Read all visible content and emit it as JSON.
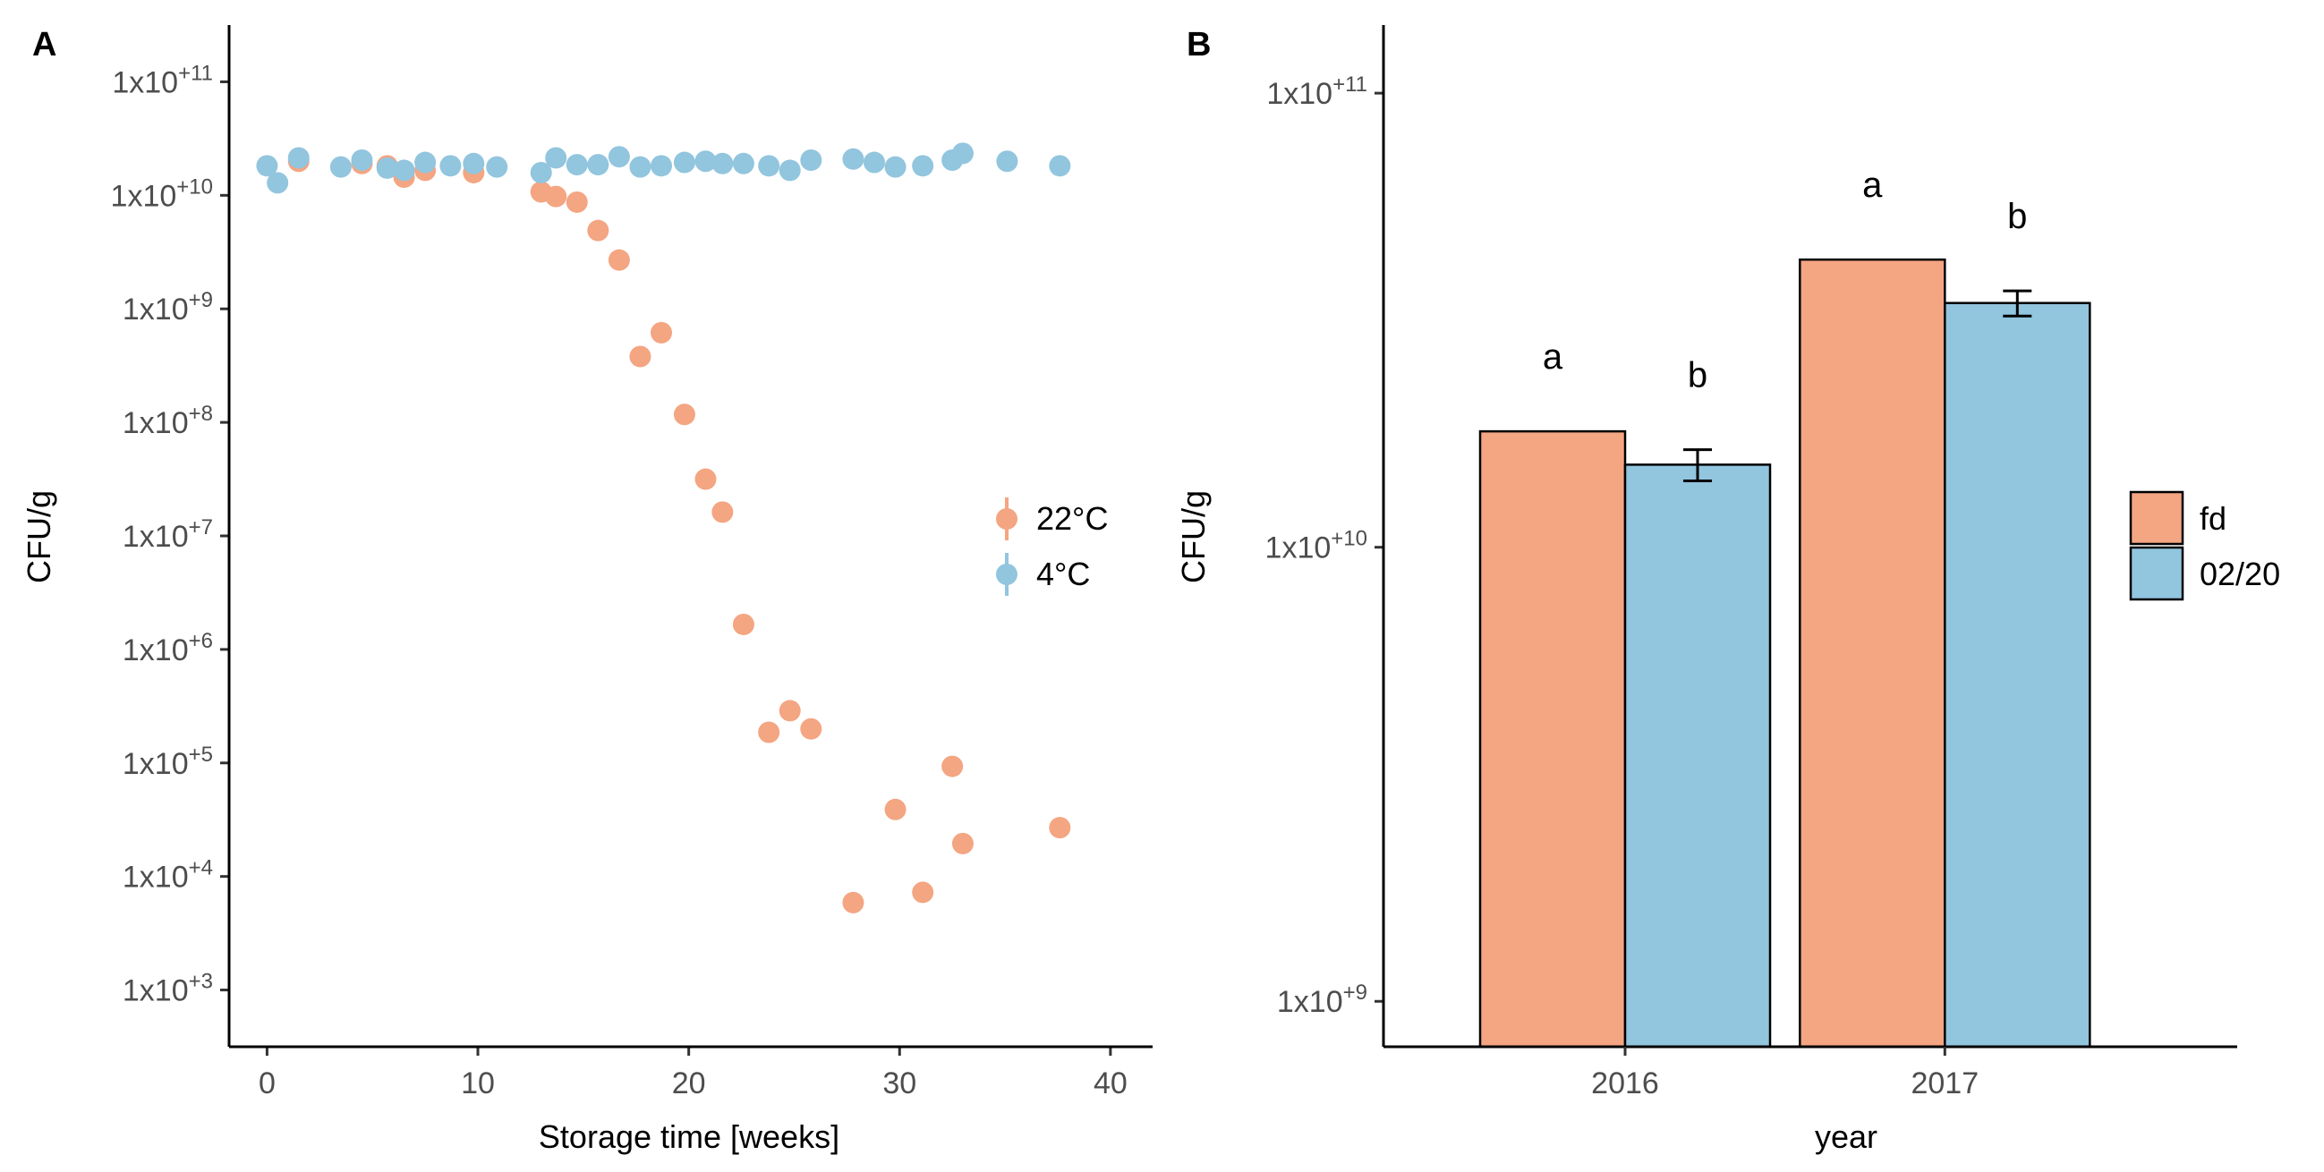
{
  "chart_data": [
    {
      "panel": "A",
      "type": "scatter",
      "title": "",
      "xlabel": "Storage time [weeks]",
      "ylabel": "CFU/g",
      "y_scale": "log10",
      "xlim": [
        -1.8,
        42
      ],
      "ylim_log10": [
        2.5,
        11.5
      ],
      "x_ticks": [
        0,
        10,
        20,
        30,
        40
      ],
      "x_tick_labels": [
        "0",
        "10",
        "20",
        "30",
        "40"
      ],
      "y_ticks_log10": [
        3,
        4,
        5,
        6,
        7,
        8,
        9,
        10,
        11
      ],
      "y_tick_labels": [
        {
          "base": "1x10",
          "exp": "+3"
        },
        {
          "base": "1x10",
          "exp": "+4"
        },
        {
          "base": "1x10",
          "exp": "+5"
        },
        {
          "base": "1x10",
          "exp": "+6"
        },
        {
          "base": "1x10",
          "exp": "+7"
        },
        {
          "base": "1x10",
          "exp": "+8"
        },
        {
          "base": "1x10",
          "exp": "+9"
        },
        {
          "base": "1x10",
          "exp": "+10"
        },
        {
          "base": "1x10",
          "exp": "+11"
        }
      ],
      "legend_position": "right",
      "series": [
        {
          "name": "22°C",
          "color": "#F4A582",
          "points": [
            {
              "x": 1.5,
              "log10y": 10.3
            },
            {
              "x": 4.5,
              "log10y": 10.28
            },
            {
              "x": 5.7,
              "log10y": 10.26
            },
            {
              "x": 6.5,
              "log10y": 10.16
            },
            {
              "x": 7.5,
              "log10y": 10.22
            },
            {
              "x": 9.8,
              "log10y": 10.2
            },
            {
              "x": 13.0,
              "log10y": 10.03
            },
            {
              "x": 13.7,
              "log10y": 9.99
            },
            {
              "x": 14.7,
              "log10y": 9.94
            },
            {
              "x": 15.7,
              "log10y": 9.69
            },
            {
              "x": 16.7,
              "log10y": 9.43
            },
            {
              "x": 17.7,
              "log10y": 8.58
            },
            {
              "x": 18.7,
              "log10y": 8.79
            },
            {
              "x": 19.8,
              "log10y": 8.07
            },
            {
              "x": 20.8,
              "log10y": 7.5
            },
            {
              "x": 21.6,
              "log10y": 7.21
            },
            {
              "x": 22.6,
              "log10y": 6.22
            },
            {
              "x": 23.8,
              "log10y": 5.27
            },
            {
              "x": 24.8,
              "log10y": 5.46
            },
            {
              "x": 25.8,
              "log10y": 5.3
            },
            {
              "x": 27.8,
              "log10y": 3.77
            },
            {
              "x": 29.8,
              "log10y": 4.59
            },
            {
              "x": 31.1,
              "log10y": 3.86
            },
            {
              "x": 32.5,
              "log10y": 4.97
            },
            {
              "x": 33.0,
              "log10y": 4.29
            },
            {
              "x": 37.6,
              "log10y": 4.43
            }
          ]
        },
        {
          "name": "4°C",
          "color": "#92C5DE",
          "points": [
            {
              "x": 0.0,
              "log10y": 10.26
            },
            {
              "x": 0.5,
              "log10y": 10.11
            },
            {
              "x": 1.5,
              "log10y": 10.33
            },
            {
              "x": 3.5,
              "log10y": 10.25
            },
            {
              "x": 4.5,
              "log10y": 10.31
            },
            {
              "x": 5.7,
              "log10y": 10.24
            },
            {
              "x": 6.5,
              "log10y": 10.22
            },
            {
              "x": 7.5,
              "log10y": 10.29
            },
            {
              "x": 8.7,
              "log10y": 10.26
            },
            {
              "x": 9.8,
              "log10y": 10.28
            },
            {
              "x": 10.9,
              "log10y": 10.25
            },
            {
              "x": 13.0,
              "log10y": 10.2
            },
            {
              "x": 13.7,
              "log10y": 10.33
            },
            {
              "x": 14.7,
              "log10y": 10.27
            },
            {
              "x": 15.7,
              "log10y": 10.27
            },
            {
              "x": 16.7,
              "log10y": 10.34
            },
            {
              "x": 17.7,
              "log10y": 10.25
            },
            {
              "x": 18.7,
              "log10y": 10.26
            },
            {
              "x": 19.8,
              "log10y": 10.29
            },
            {
              "x": 20.8,
              "log10y": 10.3
            },
            {
              "x": 21.6,
              "log10y": 10.28
            },
            {
              "x": 22.6,
              "log10y": 10.28
            },
            {
              "x": 23.8,
              "log10y": 10.26
            },
            {
              "x": 24.8,
              "log10y": 10.22
            },
            {
              "x": 25.8,
              "log10y": 10.31
            },
            {
              "x": 27.8,
              "log10y": 10.32
            },
            {
              "x": 28.8,
              "log10y": 10.29
            },
            {
              "x": 29.8,
              "log10y": 10.25
            },
            {
              "x": 31.1,
              "log10y": 10.26
            },
            {
              "x": 32.5,
              "log10y": 10.31
            },
            {
              "x": 33.0,
              "log10y": 10.37
            },
            {
              "x": 35.1,
              "log10y": 10.3
            },
            {
              "x": 37.6,
              "log10y": 10.26
            }
          ]
        }
      ]
    },
    {
      "panel": "B",
      "type": "bar",
      "title": "",
      "xlabel": "year",
      "ylabel": "CFU/g",
      "y_scale": "log10",
      "ylim_log10": [
        8.9,
        11.15
      ],
      "categories": [
        "2016",
        "2017"
      ],
      "y_ticks_log10": [
        9,
        10,
        11
      ],
      "y_tick_labels": [
        {
          "base": "1x10",
          "exp": "+9"
        },
        {
          "base": "1x10",
          "exp": "+10"
        },
        {
          "base": "1x10",
          "exp": "+11"
        }
      ],
      "legend_position": "right",
      "series": [
        {
          "name": "fd",
          "color": "#F4A582",
          "values": [
            18000000000.0,
            43000000000.0
          ],
          "error": [
            null,
            null
          ],
          "labels": [
            "a",
            "a"
          ]
        },
        {
          "name": "02/20",
          "color": "#92C5DE",
          "values": [
            15200000000.0,
            34500000000.0
          ],
          "error": [
            [
              14000000000.0,
              16400000000.0
            ],
            [
              32300000000.0,
              36700000000.0
            ]
          ],
          "labels": [
            "b",
            "b"
          ]
        }
      ]
    }
  ]
}
